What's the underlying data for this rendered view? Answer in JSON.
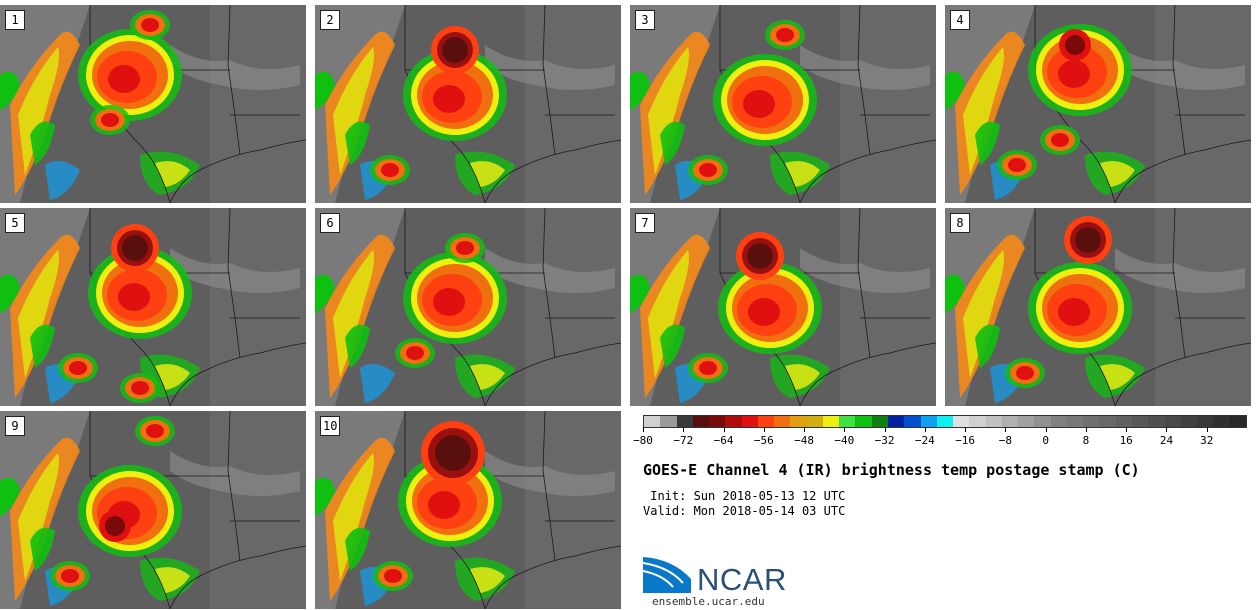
{
  "panels": [
    {
      "label": "1"
    },
    {
      "label": "2"
    },
    {
      "label": "3"
    },
    {
      "label": "4"
    },
    {
      "label": "5"
    },
    {
      "label": "6"
    },
    {
      "label": "7"
    },
    {
      "label": "8"
    },
    {
      "label": "9"
    },
    {
      "label": "10"
    }
  ],
  "colorbar": {
    "colors": [
      "#d0d0d0",
      "#9a9a9a",
      "#3a3a3a",
      "#5a0f0f",
      "#7a0a0a",
      "#b00c0c",
      "#e01010",
      "#ff4010",
      "#f07010",
      "#e0a010",
      "#d0b010",
      "#f0f010",
      "#40e040",
      "#10c010",
      "#108010",
      "#0020a0",
      "#0050d0",
      "#10a0f0",
      "#10f0f0",
      "#e0e0e0",
      "#d0d0d0",
      "#c0c0c0",
      "#b0b0b0",
      "#a0a0a0",
      "#909090",
      "#808080",
      "#787878",
      "#707070",
      "#686868",
      "#606060",
      "#585858",
      "#505050",
      "#484848",
      "#404040",
      "#383838",
      "#303030",
      "#282828"
    ],
    "min": -80,
    "max": 40,
    "tick_values": [
      -80,
      -72,
      -64,
      -56,
      -48,
      -40,
      -32,
      -24,
      -16,
      -8,
      0,
      8,
      16,
      24,
      32
    ],
    "tick_labels": [
      "−80",
      "−72",
      "−64",
      "−56",
      "−48",
      "−40",
      "−32",
      "−24",
      "−16",
      "−8",
      "0",
      "8",
      "16",
      "24",
      "32"
    ]
  },
  "title": "GOES-E Channel 4 (IR) brightness temp postage stamp (C)",
  "init_line": " Init: Sun 2018-05-13 12 UTC",
  "valid_line": "Valid: Mon 2018-05-14 03 UTC",
  "logo_text": "NCAR",
  "site": "ensemble.ucar.edu"
}
